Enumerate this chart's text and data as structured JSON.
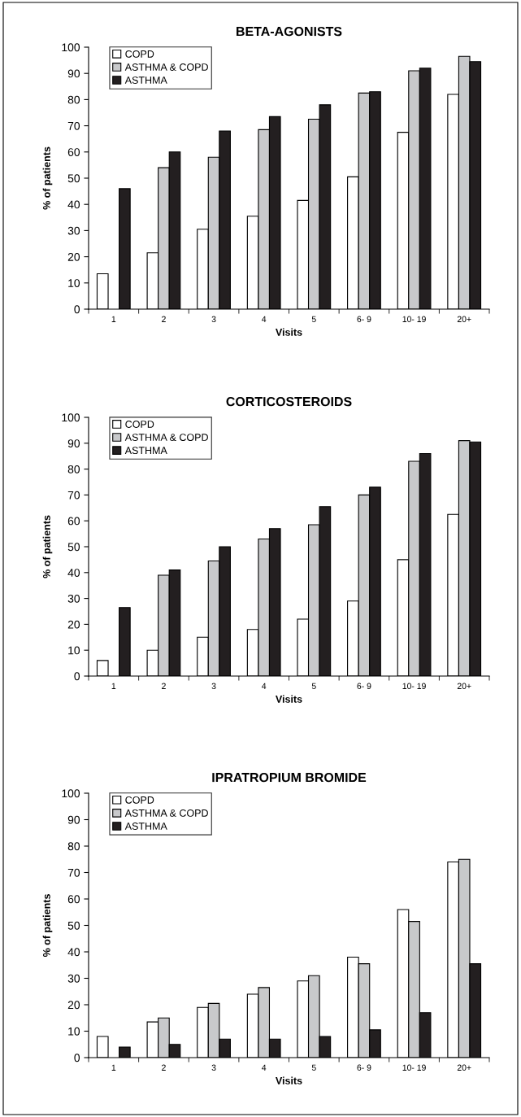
{
  "chart_data": [
    {
      "type": "bar",
      "title": "BETA-AGONISTS",
      "xlabel": "Visits",
      "ylabel": "% of patients",
      "categories": [
        "1",
        "2",
        "3",
        "4",
        "5",
        "6- 9",
        "10- 19",
        "20+"
      ],
      "ylim": [
        0,
        100
      ],
      "yticks": [
        0,
        10,
        20,
        30,
        40,
        50,
        60,
        70,
        80,
        90,
        100
      ],
      "grid": false,
      "legend": "top left",
      "series": [
        {
          "name": "COPD",
          "color": "#ffffff",
          "values": [
            13.5,
            21.5,
            30.5,
            35.5,
            41.5,
            50.5,
            67.5,
            82
          ]
        },
        {
          "name": "ASTHMA & COPD",
          "color": "#c8c9cb",
          "values": [
            null,
            54,
            58,
            68.5,
            72.5,
            82.5,
            91,
            96.5
          ]
        },
        {
          "name": "ASTHMA",
          "color": "#231f20",
          "values": [
            46,
            60,
            68,
            73.5,
            78,
            83,
            92,
            94.5
          ]
        }
      ]
    },
    {
      "type": "bar",
      "title": "CORTICOSTEROIDS",
      "xlabel": "Visits",
      "ylabel": "% of patients",
      "categories": [
        "1",
        "2",
        "3",
        "4",
        "5",
        "6- 9",
        "10- 19",
        "20+"
      ],
      "ylim": [
        0,
        100
      ],
      "yticks": [
        0,
        10,
        20,
        30,
        40,
        50,
        60,
        70,
        80,
        90,
        100
      ],
      "grid": false,
      "legend": "top left",
      "series": [
        {
          "name": "COPD",
          "color": "#ffffff",
          "values": [
            6,
            10,
            15,
            18,
            22,
            29,
            45,
            62.5
          ]
        },
        {
          "name": "ASTHMA & COPD",
          "color": "#c8c9cb",
          "values": [
            null,
            39,
            44.5,
            53,
            58.5,
            70,
            83,
            91
          ]
        },
        {
          "name": "ASTHMA",
          "color": "#231f20",
          "values": [
            26.5,
            41,
            50,
            57,
            65.5,
            73,
            86,
            90.5
          ]
        }
      ]
    },
    {
      "type": "bar",
      "title": "IPRATROPIUM BROMIDE",
      "xlabel": "Visits",
      "ylabel": "% of patients",
      "categories": [
        "1",
        "2",
        "3",
        "4",
        "5",
        "6- 9",
        "10- 19",
        "20+"
      ],
      "ylim": [
        0,
        100
      ],
      "yticks": [
        0,
        10,
        20,
        30,
        40,
        50,
        60,
        70,
        80,
        90,
        100
      ],
      "grid": false,
      "legend": "top left",
      "series": [
        {
          "name": "COPD",
          "color": "#ffffff",
          "values": [
            8,
            13.5,
            19,
            24,
            29,
            38,
            56,
            74
          ]
        },
        {
          "name": "ASTHMA & COPD",
          "color": "#c8c9cb",
          "values": [
            null,
            15,
            20.5,
            26.5,
            31,
            35.5,
            51.5,
            75
          ]
        },
        {
          "name": "ASTHMA",
          "color": "#231f20",
          "values": [
            4,
            5,
            7,
            7,
            8,
            10.5,
            17,
            35.5
          ]
        }
      ]
    }
  ]
}
